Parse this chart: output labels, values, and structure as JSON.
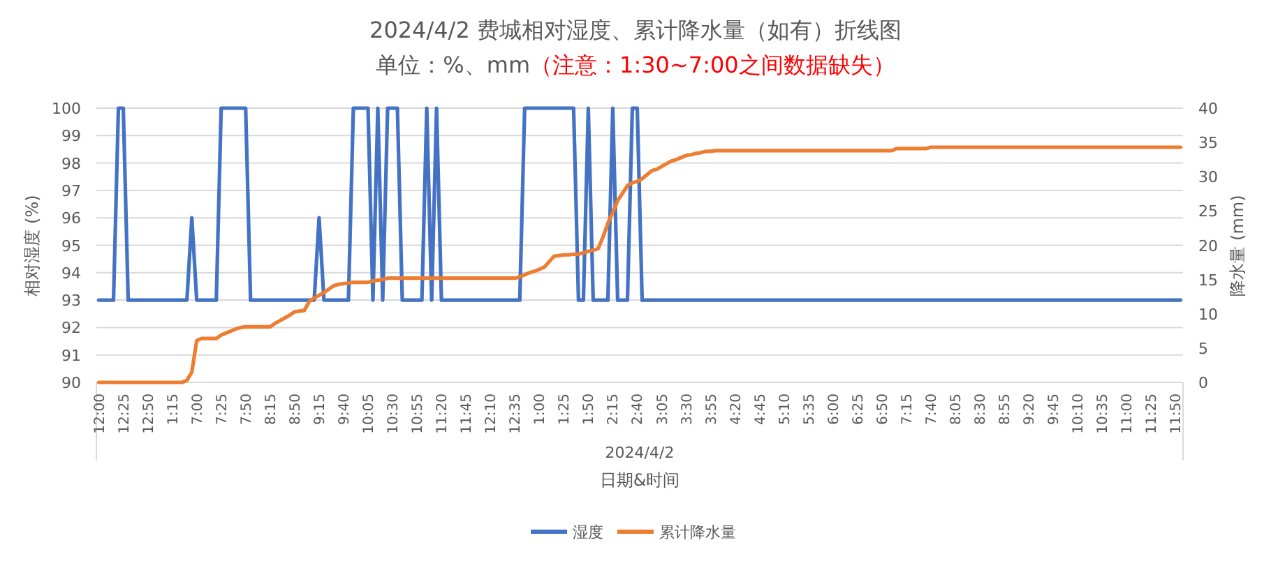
{
  "chart_data": {
    "type": "line",
    "title": "2024/4/2 费城相对湿度、累计降水量（如有）折线图",
    "subtitle": "单位：%、mm",
    "annotations": [
      "（注意：1:30~7:00之间数据缺失）",
      "2024/4/2"
    ],
    "xlabel": "日期&时间",
    "ylabel": "相对湿度 (%)",
    "y2label": "降水量 (mm)",
    "categories": [
      "12:00",
      null,
      null,
      null,
      null,
      "12:25",
      null,
      null,
      null,
      null,
      "12:50",
      null,
      null,
      null,
      null,
      "1:15",
      null,
      null,
      null,
      null,
      "7:00",
      null,
      null,
      null,
      null,
      "7:25",
      null,
      null,
      null,
      null,
      "7:50",
      null,
      null,
      null,
      null,
      "8:15",
      null,
      null,
      null,
      null,
      "8:50",
      null,
      null,
      null,
      null,
      "9:15",
      null,
      null,
      null,
      null,
      "9:40",
      null,
      null,
      null,
      null,
      "10:05",
      null,
      null,
      null,
      null,
      "10:30",
      null,
      null,
      null,
      null,
      "10:55",
      null,
      null,
      null,
      null,
      "11:20",
      null,
      null,
      null,
      null,
      "11:45",
      null,
      null,
      null,
      null,
      "12:10",
      null,
      null,
      null,
      null,
      "12:35",
      null,
      null,
      null,
      null,
      "1:00",
      null,
      null,
      null,
      null,
      "1:25",
      null,
      null,
      null,
      null,
      "1:50",
      null,
      null,
      null,
      null,
      "2:15",
      null,
      null,
      null,
      null,
      "2:40",
      null,
      null,
      null,
      null,
      "3:05",
      null,
      null,
      null,
      null,
      "3:30",
      null,
      null,
      null,
      null,
      "3:55",
      null,
      null,
      null,
      null,
      "4:20",
      null,
      null,
      null,
      null,
      "4:45",
      null,
      null,
      null,
      null,
      "5:10",
      null,
      null,
      null,
      null,
      "5:35",
      null,
      null,
      null,
      null,
      "6:00",
      null,
      null,
      null,
      null,
      "6:25",
      null,
      null,
      null,
      null,
      "6:50",
      null,
      null,
      null,
      null,
      "7:15",
      null,
      null,
      null,
      null,
      "7:40",
      null,
      null,
      null,
      null,
      "8:05",
      null,
      null,
      null,
      null,
      "8:30",
      null,
      null,
      null,
      null,
      "8:55",
      null,
      null,
      null,
      null,
      "9:20",
      null,
      null,
      null,
      null,
      "9:45",
      null,
      null,
      null,
      null,
      "10:10",
      null,
      null,
      null,
      null,
      "10:35",
      null,
      null,
      null,
      null,
      "11:00",
      null,
      null,
      null,
      null,
      "11:25",
      null,
      null,
      null,
      null,
      "11:50",
      null
    ],
    "series": [
      {
        "name": "湿度",
        "color": "#4472c4",
        "values": [
          93,
          93,
          93,
          93,
          100,
          100,
          93,
          93,
          93,
          93,
          93,
          93,
          93,
          93,
          93,
          93,
          93,
          93,
          93,
          96,
          93,
          93,
          93,
          93,
          93,
          100,
          100,
          100,
          100,
          100,
          100,
          93,
          93,
          93,
          93,
          93,
          93,
          93,
          93,
          93,
          93,
          93,
          93,
          93,
          93,
          96,
          93,
          93,
          93,
          93,
          93,
          93,
          100,
          100,
          100,
          100,
          93,
          100,
          93,
          100,
          100,
          100,
          93,
          93,
          93,
          93,
          93,
          100,
          93,
          100,
          93,
          93,
          93,
          93,
          93,
          93,
          93,
          93,
          93,
          93,
          93,
          93,
          93,
          93,
          93,
          93,
          93,
          100,
          100,
          100,
          100,
          100,
          100,
          100,
          100,
          100,
          100,
          100,
          93,
          93,
          100,
          93,
          93,
          93,
          93,
          100,
          93,
          93,
          93,
          100,
          100,
          93,
          93,
          93,
          93,
          93,
          93,
          93,
          93,
          93,
          93,
          93,
          93,
          93,
          93,
          93,
          93,
          93,
          93,
          93,
          93,
          93,
          93,
          93,
          93,
          93,
          93,
          93,
          93,
          93,
          93,
          93,
          93,
          93,
          93,
          93,
          93,
          93,
          93,
          93,
          93,
          93,
          93,
          93,
          93,
          93,
          93,
          93,
          93,
          93,
          93,
          93,
          93,
          93,
          93,
          93,
          93,
          93,
          93,
          93,
          93,
          93,
          93,
          93,
          93,
          93,
          93,
          93,
          93,
          93,
          93,
          93,
          93,
          93,
          93,
          93,
          93,
          93,
          93,
          93,
          93,
          93,
          93,
          93,
          93,
          93,
          93,
          93,
          93,
          93,
          93,
          93,
          93,
          93,
          93,
          93,
          93,
          93,
          93,
          93,
          93,
          93,
          93,
          93,
          93,
          93,
          93,
          93,
          93,
          93,
          93,
          93
        ]
      },
      {
        "name": "累计降水量",
        "color": "#ed7d31",
        "axis": "y2",
        "values": [
          0,
          0,
          0,
          0,
          0,
          0,
          0,
          0,
          0,
          0,
          0,
          0,
          0,
          0,
          0,
          0,
          0,
          0,
          0.3,
          1.5,
          6.1,
          6.4,
          6.4,
          6.4,
          6.4,
          6.9,
          7.2,
          7.5,
          7.8,
          8.0,
          8.1,
          8.1,
          8.1,
          8.1,
          8.1,
          8.1,
          8.6,
          9.0,
          9.4,
          9.8,
          10.3,
          10.4,
          10.5,
          11.8,
          12.3,
          12.7,
          13.1,
          13.6,
          14.1,
          14.3,
          14.4,
          14.5,
          14.6,
          14.6,
          14.6,
          14.6,
          14.8,
          14.9,
          15.0,
          15.2,
          15.2,
          15.2,
          15.2,
          15.2,
          15.2,
          15.2,
          15.2,
          15.2,
          15.2,
          15.2,
          15.2,
          15.2,
          15.2,
          15.2,
          15.2,
          15.2,
          15.2,
          15.2,
          15.2,
          15.2,
          15.2,
          15.2,
          15.2,
          15.2,
          15.2,
          15.2,
          15.4,
          15.7,
          16.0,
          16.2,
          16.5,
          16.8,
          17.6,
          18.4,
          18.5,
          18.6,
          18.6,
          18.7,
          18.7,
          18.9,
          19.1,
          19.3,
          19.5,
          21.2,
          23.2,
          24.8,
          26.5,
          27.6,
          28.7,
          29.1,
          29.3,
          29.7,
          30.3,
          30.9,
          31.1,
          31.5,
          31.9,
          32.3,
          32.5,
          32.8,
          33.1,
          33.2,
          33.4,
          33.5,
          33.7,
          33.7,
          33.8,
          33.8,
          33.8,
          33.8,
          33.8,
          33.8,
          33.8,
          33.8,
          33.8,
          33.8,
          33.8,
          33.8,
          33.8,
          33.8,
          33.8,
          33.8,
          33.8,
          33.8,
          33.8,
          33.8,
          33.8,
          33.8,
          33.8,
          33.8,
          33.8,
          33.8,
          33.8,
          33.8,
          33.8,
          33.8,
          33.8,
          33.8,
          33.8,
          33.8,
          33.8,
          33.8,
          33.8,
          34.1,
          34.1,
          34.1,
          34.1,
          34.1,
          34.1,
          34.1,
          34.3,
          34.3,
          34.3,
          34.3,
          34.3,
          34.3,
          34.3,
          34.3,
          34.3,
          34.3,
          34.3,
          34.3,
          34.3,
          34.3,
          34.3,
          34.3,
          34.3,
          34.3,
          34.3,
          34.3,
          34.3,
          34.3,
          34.3,
          34.3,
          34.3,
          34.3,
          34.3,
          34.3,
          34.3,
          34.3,
          34.3,
          34.3,
          34.3,
          34.3,
          34.3,
          34.3,
          34.3,
          34.3,
          34.3,
          34.3,
          34.3,
          34.3,
          34.3,
          34.3,
          34.3,
          34.3,
          34.3,
          34.3,
          34.3,
          34.3,
          34.3,
          34.3
        ]
      }
    ],
    "ylim": [
      90,
      100
    ],
    "yticks": [
      90,
      91,
      92,
      93,
      94,
      95,
      96,
      97,
      98,
      99,
      100
    ],
    "y2lim": [
      0,
      40
    ],
    "y2ticks": [
      0,
      5,
      10,
      15,
      20,
      25,
      30,
      35,
      40
    ],
    "grid": "y",
    "legend": "bottom",
    "marker": "none"
  }
}
